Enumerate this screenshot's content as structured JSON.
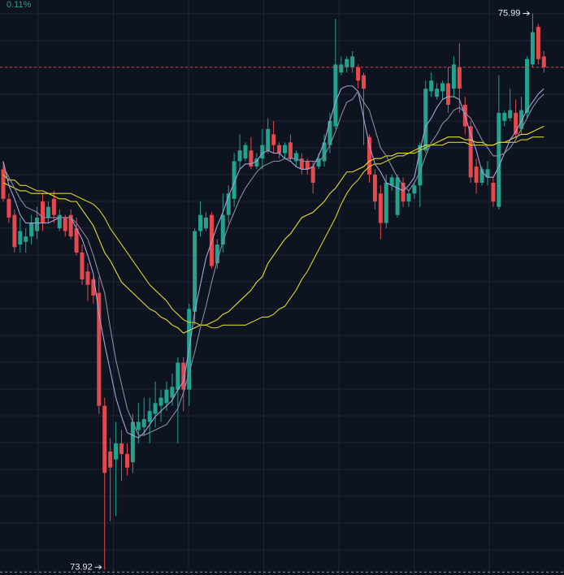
{
  "chart_data": {
    "type": "candlestick",
    "change_label": "0.11%",
    "max_label": 75.99,
    "min_label": 73.92,
    "price_line": 75.79,
    "ylim": [
      73.9,
      76.04
    ],
    "grid": true,
    "up_color": "#22a38f",
    "down_color": "#e5484d",
    "price_line_color": "#c8474f",
    "ohlc": [
      [
        75.41,
        75.44,
        75.29,
        75.3
      ],
      [
        75.3,
        75.32,
        75.21,
        75.23
      ],
      [
        75.24,
        75.26,
        75.1,
        75.12
      ],
      [
        75.13,
        75.23,
        75.1,
        75.18
      ],
      [
        75.14,
        75.19,
        75.1,
        75.16
      ],
      [
        75.16,
        75.24,
        75.13,
        75.21
      ],
      [
        75.18,
        75.27,
        75.15,
        75.23
      ],
      [
        75.29,
        75.32,
        75.18,
        75.21
      ],
      [
        75.23,
        75.29,
        75.21,
        75.27
      ],
      [
        75.3,
        75.33,
        75.21,
        75.24
      ],
      [
        75.19,
        75.26,
        75.18,
        75.24
      ],
      [
        75.23,
        75.24,
        75.16,
        75.18
      ],
      [
        75.24,
        75.26,
        75.15,
        75.16
      ],
      [
        75.19,
        75.23,
        75.09,
        75.1
      ],
      [
        75.1,
        75.13,
        74.98,
        75.0
      ],
      [
        75.03,
        75.06,
        74.92,
        74.98
      ],
      [
        75.0,
        75.01,
        74.91,
        74.94
      ],
      [
        74.95,
        75.01,
        74.5,
        74.53
      ],
      [
        74.53,
        74.56,
        73.92,
        74.28
      ],
      [
        74.36,
        74.41,
        74.1,
        74.3
      ],
      [
        74.33,
        74.47,
        74.12,
        74.39
      ],
      [
        74.39,
        74.44,
        74.25,
        74.35
      ],
      [
        74.35,
        74.39,
        74.27,
        74.3
      ],
      [
        74.32,
        74.5,
        74.28,
        74.47
      ],
      [
        74.44,
        74.54,
        74.39,
        74.47
      ],
      [
        74.45,
        74.56,
        74.42,
        74.48
      ],
      [
        74.47,
        74.56,
        74.39,
        74.51
      ],
      [
        74.5,
        74.62,
        74.45,
        74.54
      ],
      [
        74.53,
        74.59,
        74.47,
        74.56
      ],
      [
        74.54,
        74.62,
        74.51,
        74.59
      ],
      [
        74.56,
        74.65,
        74.53,
        74.6
      ],
      [
        74.59,
        74.71,
        74.39,
        74.69
      ],
      [
        74.69,
        74.71,
        74.51,
        74.59
      ],
      [
        74.59,
        74.91,
        74.53,
        74.89
      ],
      [
        74.88,
        75.19,
        74.83,
        75.18
      ],
      [
        75.18,
        75.29,
        75.16,
        75.24
      ],
      [
        75.19,
        75.25,
        75.18,
        75.23
      ],
      [
        75.24,
        75.25,
        75.04,
        75.05
      ],
      [
        75.06,
        75.15,
        75.04,
        75.13
      ],
      [
        75.13,
        75.32,
        75.1,
        75.24
      ],
      [
        75.24,
        75.35,
        75.21,
        75.32
      ],
      [
        75.3,
        75.47,
        75.27,
        75.44
      ],
      [
        75.44,
        75.54,
        75.41,
        75.48
      ],
      [
        75.45,
        75.51,
        75.44,
        75.5
      ],
      [
        75.48,
        75.53,
        75.41,
        75.42
      ],
      [
        75.42,
        75.47,
        75.41,
        75.45
      ],
      [
        75.45,
        75.56,
        75.41,
        75.5
      ],
      [
        75.48,
        75.6,
        75.47,
        75.56
      ],
      [
        75.54,
        75.59,
        75.47,
        75.5
      ],
      [
        75.5,
        75.51,
        75.45,
        75.47
      ],
      [
        75.47,
        75.51,
        75.45,
        75.5
      ],
      [
        75.51,
        75.54,
        75.44,
        75.45
      ],
      [
        75.44,
        75.48,
        75.42,
        75.47
      ],
      [
        75.45,
        75.47,
        75.39,
        75.41
      ],
      [
        75.44,
        75.45,
        75.39,
        75.41
      ],
      [
        75.42,
        75.44,
        75.32,
        75.36
      ],
      [
        75.42,
        75.47,
        75.41,
        75.45
      ],
      [
        75.44,
        75.54,
        75.42,
        75.51
      ],
      [
        75.5,
        75.62,
        75.47,
        75.59
      ],
      [
        75.57,
        75.97,
        75.56,
        75.8
      ],
      [
        75.77,
        75.83,
        75.76,
        75.8
      ],
      [
        75.79,
        75.83,
        75.77,
        75.82
      ],
      [
        75.79,
        75.85,
        75.77,
        75.83
      ],
      [
        75.79,
        75.8,
        75.71,
        75.74
      ],
      [
        75.76,
        75.77,
        75.5,
        75.71
      ],
      [
        75.53,
        75.54,
        75.36,
        75.39
      ],
      [
        75.39,
        75.41,
        75.26,
        75.29
      ],
      [
        75.32,
        75.35,
        75.15,
        75.21
      ],
      [
        75.21,
        75.39,
        75.19,
        75.36
      ],
      [
        75.35,
        75.39,
        75.33,
        75.38
      ],
      [
        75.24,
        75.39,
        75.23,
        75.38
      ],
      [
        75.36,
        75.38,
        75.27,
        75.29
      ],
      [
        75.29,
        75.33,
        75.27,
        75.32
      ],
      [
        75.32,
        75.36,
        75.3,
        75.35
      ],
      [
        75.35,
        75.51,
        75.27,
        75.5
      ],
      [
        75.48,
        75.74,
        75.47,
        75.71
      ],
      [
        75.7,
        75.77,
        75.68,
        75.74
      ],
      [
        75.68,
        75.73,
        75.67,
        75.71
      ],
      [
        75.7,
        75.74,
        75.67,
        75.73
      ],
      [
        75.73,
        75.79,
        75.62,
        75.65
      ],
      [
        75.71,
        75.83,
        75.68,
        75.8
      ],
      [
        75.79,
        75.88,
        75.62,
        75.71
      ],
      [
        75.65,
        75.68,
        75.54,
        75.57
      ],
      [
        75.57,
        75.59,
        75.36,
        75.38
      ],
      [
        75.42,
        75.45,
        75.32,
        75.36
      ],
      [
        75.36,
        75.42,
        75.35,
        75.41
      ],
      [
        75.38,
        75.44,
        75.35,
        75.41
      ],
      [
        75.36,
        75.38,
        75.27,
        75.29
      ],
      [
        75.27,
        75.76,
        75.26,
        75.62
      ],
      [
        75.59,
        75.63,
        75.57,
        75.62
      ],
      [
        75.6,
        75.71,
        75.59,
        75.63
      ],
      [
        75.62,
        75.67,
        75.53,
        75.54
      ],
      [
        75.56,
        75.68,
        75.54,
        75.63
      ],
      [
        75.62,
        75.83,
        75.6,
        75.82
      ],
      [
        75.8,
        75.99,
        75.79,
        75.92
      ],
      [
        75.94,
        75.95,
        75.8,
        75.82
      ],
      [
        75.83,
        75.85,
        75.77,
        75.79
      ]
    ],
    "lines": [
      {
        "color": "#e6dd34",
        "values": [
          75.36,
          75.35,
          75.34,
          75.33,
          75.33,
          75.32,
          75.32,
          75.32,
          75.32,
          75.31,
          75.3,
          75.3,
          75.29,
          75.29,
          75.26,
          75.23,
          75.2,
          75.15,
          75.1,
          75.07,
          75.03,
          74.99,
          74.97,
          74.95,
          74.93,
          74.91,
          74.89,
          74.88,
          74.86,
          74.85,
          74.83,
          74.82,
          74.8,
          74.81,
          74.82,
          74.83,
          74.83,
          74.84,
          74.85,
          74.87,
          74.88,
          74.9,
          74.92,
          74.94,
          74.96,
          74.99,
          75.01,
          75.06,
          75.09,
          75.12,
          75.15,
          75.17,
          75.2,
          75.23,
          75.24,
          75.25,
          75.27,
          75.29,
          75.32,
          75.34,
          75.37,
          75.4,
          75.4,
          75.41,
          75.42,
          75.44,
          75.45,
          75.45,
          75.46,
          75.46,
          75.47,
          75.47,
          75.47,
          75.48,
          75.49,
          75.5,
          75.5,
          75.51,
          75.52,
          75.53,
          75.53,
          75.53,
          75.52,
          75.52,
          75.51,
          75.51,
          75.5,
          75.5,
          75.51,
          75.51,
          75.52,
          75.53,
          75.54,
          75.54,
          75.55,
          75.56,
          75.57
        ]
      },
      {
        "color": "#d8cf2a",
        "values": [
          75.39,
          75.37,
          75.37,
          75.35,
          75.35,
          75.34,
          75.33,
          75.33,
          75.32,
          75.32,
          75.32,
          75.32,
          75.32,
          75.31,
          75.3,
          75.29,
          75.28,
          75.26,
          75.23,
          75.19,
          75.16,
          75.13,
          75.1,
          75.07,
          75.04,
          75.01,
          74.98,
          74.96,
          74.94,
          74.92,
          74.89,
          74.87,
          74.85,
          74.84,
          74.84,
          74.83,
          74.83,
          74.82,
          74.82,
          74.83,
          74.83,
          74.83,
          74.83,
          74.83,
          74.84,
          74.85,
          74.86,
          74.86,
          74.87,
          74.89,
          74.9,
          74.93,
          74.96,
          75.0,
          75.03,
          75.07,
          75.11,
          75.15,
          75.19,
          75.23,
          75.28,
          75.32,
          75.35,
          75.37,
          75.4,
          75.42,
          75.43,
          75.43,
          75.44,
          75.45,
          75.46,
          75.46,
          75.47,
          75.47,
          75.48,
          75.49,
          75.5,
          75.5,
          75.5,
          75.51,
          75.51,
          75.51,
          75.51,
          75.5,
          75.5,
          75.5,
          75.5,
          75.5,
          75.51,
          75.51,
          75.51,
          75.51,
          75.52,
          75.52,
          75.53,
          75.53,
          75.53
        ]
      },
      {
        "color": "#a7a2d8",
        "values": [
          75.44,
          75.35,
          75.3,
          75.24,
          75.21,
          75.21,
          75.21,
          75.21,
          75.21,
          75.22,
          75.23,
          75.23,
          75.23,
          75.19,
          75.15,
          75.09,
          75.02,
          74.87,
          74.76,
          74.66,
          74.56,
          74.49,
          74.43,
          74.42,
          74.41,
          74.43,
          74.46,
          74.49,
          74.51,
          74.53,
          74.55,
          74.59,
          74.62,
          74.74,
          74.88,
          74.98,
          75.08,
          75.14,
          75.2,
          75.25,
          75.31,
          75.36,
          75.41,
          75.43,
          75.43,
          75.44,
          75.47,
          75.48,
          75.47,
          75.47,
          75.45,
          75.44,
          75.42,
          75.41,
          75.41,
          75.42,
          75.46,
          75.51,
          75.59,
          75.66,
          75.71,
          75.72,
          75.72,
          75.7,
          75.6,
          75.5,
          75.43,
          75.4,
          75.36,
          75.35,
          75.34,
          75.33,
          75.35,
          75.38,
          75.48,
          75.57,
          75.6,
          75.64,
          75.67,
          75.68,
          75.68,
          75.67,
          75.61,
          75.54,
          75.48,
          75.4,
          75.38,
          75.38,
          75.42,
          75.47,
          75.52,
          75.55,
          75.59,
          75.63,
          75.66,
          75.69,
          75.71
        ]
      },
      {
        "color": "#8b8aa6",
        "values": [
          75.42,
          75.38,
          75.34,
          75.3,
          75.27,
          75.26,
          75.25,
          75.23,
          75.23,
          75.23,
          75.23,
          75.23,
          75.23,
          75.21,
          75.18,
          75.15,
          75.09,
          75.02,
          74.95,
          74.82,
          74.7,
          74.61,
          74.52,
          74.47,
          74.42,
          74.42,
          74.43,
          74.44,
          74.45,
          74.46,
          74.49,
          74.52,
          74.58,
          74.65,
          74.73,
          74.82,
          74.9,
          74.99,
          75.07,
          75.14,
          75.2,
          75.25,
          75.3,
          75.34,
          75.37,
          75.4,
          75.42,
          75.43,
          75.44,
          75.44,
          75.45,
          75.45,
          75.45,
          75.44,
          75.44,
          75.44,
          75.44,
          75.46,
          75.5,
          75.55,
          75.61,
          75.66,
          75.67,
          75.7,
          75.66,
          75.63,
          75.56,
          75.49,
          75.46,
          75.42,
          75.38,
          75.35,
          75.33,
          75.36,
          75.4,
          75.46,
          75.51,
          75.54,
          75.58,
          75.6,
          75.63,
          75.64,
          75.62,
          75.6,
          75.56,
          75.52,
          75.49,
          75.46,
          75.46,
          75.47,
          75.49,
          75.52,
          75.56,
          75.6,
          75.64,
          75.67,
          75.69
        ]
      }
    ]
  }
}
